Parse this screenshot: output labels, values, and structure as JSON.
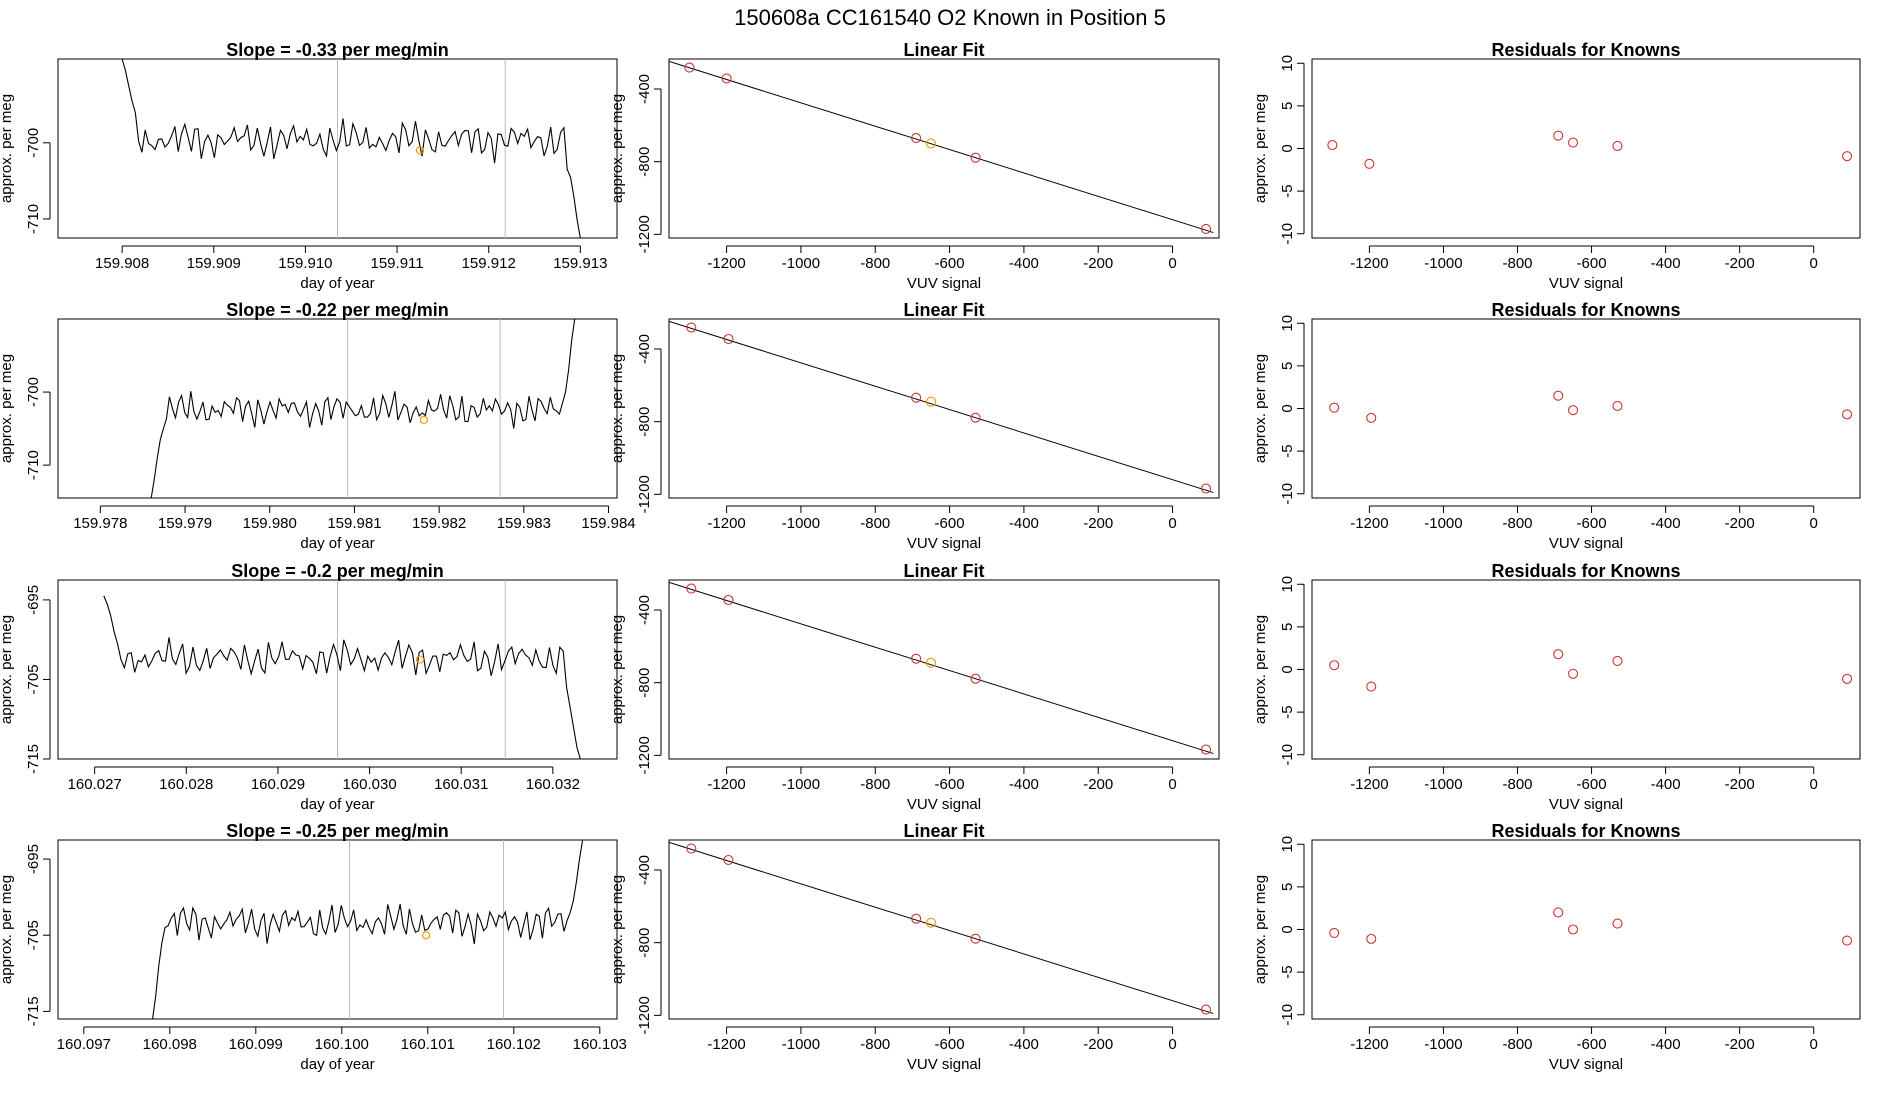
{
  "page_title": "150608a      CC161540    O2 Known in Position  5",
  "colors": {
    "series": "#000000",
    "marker": "#cc3333",
    "marker_highlight": "#e69f00",
    "vline": "#bbbbbb",
    "fit": "#000000"
  },
  "chart_data": [
    {
      "type": "line",
      "id": "ts1",
      "title": "Slope =  -0.33  per meg/min",
      "xlabel": "day of year",
      "ylabel": "approx. per meg",
      "xlim": [
        159.9073,
        159.9134
      ],
      "ylim": [
        -712.5,
        -689
      ],
      "xticks": [
        159.908,
        159.909,
        159.91,
        159.911,
        159.912,
        159.913
      ],
      "xtick_labels": [
        "159.908",
        "159.909",
        "159.910",
        "159.911",
        "159.912",
        "159.913"
      ],
      "yticks": [
        -700,
        -710
      ],
      "ytick_labels": [
        "-700",
        "-710"
      ],
      "vlines": [
        159.91035,
        159.91218
      ],
      "highlight_point": {
        "x": 159.91125,
        "y": -701
      },
      "series": {
        "x_start": 159.908,
        "x_end": 159.913,
        "n": 140,
        "start_y": [
          -689,
          -690.5,
          -692.5,
          -694.5,
          -696.0
        ],
        "end_y": [
          -703.5,
          -704.5,
          -707,
          -710,
          -712.5
        ],
        "base": -699.6,
        "amp": 2.4
      }
    },
    {
      "type": "line",
      "id": "ts2",
      "title": "Slope =  -0.22  per meg/min",
      "xlabel": "day of year",
      "ylabel": "approx. per meg",
      "xlim": [
        159.9775,
        159.9841
      ],
      "ylim": [
        -714.5,
        -690
      ],
      "xticks": [
        159.978,
        159.979,
        159.98,
        159.981,
        159.982,
        159.983,
        159.984
      ],
      "xtick_labels": [
        "159.978",
        "159.979",
        "159.980",
        "159.981",
        "159.982",
        "159.983",
        "159.984"
      ],
      "yticks": [
        -700,
        -710
      ],
      "ytick_labels": [
        "-700",
        "-710"
      ],
      "vlines": [
        159.98092,
        159.98272
      ],
      "highlight_point": {
        "x": 159.98182,
        "y": -703.8
      },
      "series": {
        "x_start": 159.9786,
        "x_end": 159.9836,
        "n": 140,
        "start_y": [
          -714.5,
          -712,
          -709,
          -706.5,
          -705
        ],
        "end_y": [
          -701.5,
          -700,
          -697,
          -693,
          -690
        ],
        "base": -702.4,
        "amp": 2.2
      }
    },
    {
      "type": "line",
      "id": "ts3",
      "title": "Slope =  -0.2  per meg/min",
      "xlabel": "day of year",
      "ylabel": "approx. per meg",
      "xlim": [
        160.0266,
        160.0327
      ],
      "ylim": [
        -715,
        -692.5
      ],
      "xticks": [
        160.027,
        160.028,
        160.029,
        160.03,
        160.031,
        160.032
      ],
      "xtick_labels": [
        "160.027",
        "160.028",
        "160.029",
        "160.030",
        "160.031",
        "160.032"
      ],
      "yticks": [
        -695,
        -705,
        -715
      ],
      "ytick_labels": [
        "-695",
        "-705",
        "-715"
      ],
      "vlines": [
        160.02965,
        160.03148
      ],
      "highlight_point": {
        "x": 160.03055,
        "y": -702.5
      },
      "series": {
        "x_start": 160.0271,
        "x_end": 160.0323,
        "n": 140,
        "start_y": [
          -694.5,
          -695.5,
          -697,
          -699,
          -700.5
        ],
        "end_y": [
          -706,
          -708.5,
          -711,
          -713.5,
          -715
        ],
        "base": -702.3,
        "amp": 2.2
      }
    },
    {
      "type": "line",
      "id": "ts4",
      "title": "Slope =  -0.25  per meg/min",
      "xlabel": "day of year",
      "ylabel": "approx. per meg",
      "xlim": [
        160.0967,
        160.1032
      ],
      "ylim": [
        -716,
        -692.5
      ],
      "xticks": [
        160.097,
        160.098,
        160.099,
        160.1,
        160.101,
        160.102,
        160.103
      ],
      "xtick_labels": [
        "160.097",
        "160.098",
        "160.099",
        "160.100",
        "160.101",
        "160.102",
        "160.103"
      ],
      "yticks": [
        -695,
        -705,
        -715
      ],
      "ytick_labels": [
        "-695",
        "-705",
        "-715"
      ],
      "vlines": [
        160.10009,
        160.10188
      ],
      "highlight_point": {
        "x": 160.10098,
        "y": -705
      },
      "series": {
        "x_start": 160.0978,
        "x_end": 160.1028,
        "n": 140,
        "start_y": [
          -716,
          -713,
          -709,
          -706,
          -704
        ],
        "end_y": [
          -702,
          -700.5,
          -698,
          -695,
          -692.5
        ],
        "base": -703.3,
        "amp": 2.3
      }
    },
    {
      "type": "scatter",
      "id": "fit1",
      "title": "Linear Fit",
      "xlabel": "VUV signal",
      "ylabel": "approx. per meg",
      "xlim": [
        -1355,
        125
      ],
      "ylim": [
        -1220,
        -235
      ],
      "xticks": [
        -1200,
        -1000,
        -800,
        -600,
        -400,
        -200,
        0
      ],
      "xtick_labels": [
        "-1200",
        "-1000",
        "-800",
        "-600",
        "-400",
        "-200",
        "0"
      ],
      "yticks": [
        -400,
        -800,
        -1200
      ],
      "ytick_labels": [
        "-400",
        "-800",
        "-1200"
      ],
      "fit_line": {
        "x": [
          -1355,
          110
        ],
        "y": [
          -248,
          -1190
        ]
      },
      "points": {
        "x": [
          -1300,
          -1200,
          -690,
          -650,
          -530,
          90
        ],
        "y": [
          -282,
          -342,
          -670,
          -700,
          -778,
          -1170
        ]
      },
      "highlight_index": 3
    },
    {
      "type": "scatter",
      "id": "fit2",
      "title": "Linear Fit",
      "xlabel": "VUV signal",
      "ylabel": "approx. per meg",
      "xlim": [
        -1355,
        125
      ],
      "ylim": [
        -1220,
        -235
      ],
      "xticks": [
        -1200,
        -1000,
        -800,
        -600,
        -400,
        -200,
        0
      ],
      "xtick_labels": [
        "-1200",
        "-1000",
        "-800",
        "-600",
        "-400",
        "-200",
        "0"
      ],
      "yticks": [
        -400,
        -800,
        -1200
      ],
      "ytick_labels": [
        "-400",
        "-800",
        "-1200"
      ],
      "fit_line": {
        "x": [
          -1355,
          110
        ],
        "y": [
          -248,
          -1190
        ]
      },
      "points": {
        "x": [
          -1295,
          -1195,
          -690,
          -650,
          -530,
          90
        ],
        "y": [
          -282,
          -345,
          -668,
          -690,
          -778,
          -1168
        ]
      },
      "highlight_index": 3
    },
    {
      "type": "scatter",
      "id": "fit3",
      "title": "Linear Fit",
      "xlabel": "VUV signal",
      "ylabel": "approx. per meg",
      "xlim": [
        -1355,
        125
      ],
      "ylim": [
        -1220,
        -235
      ],
      "xticks": [
        -1200,
        -1000,
        -800,
        -600,
        -400,
        -200,
        0
      ],
      "xtick_labels": [
        "-1200",
        "-1000",
        "-800",
        "-600",
        "-400",
        "-200",
        "0"
      ],
      "yticks": [
        -400,
        -800,
        -1200
      ],
      "ytick_labels": [
        "-400",
        "-800",
        "-1200"
      ],
      "fit_line": {
        "x": [
          -1355,
          110
        ],
        "y": [
          -248,
          -1190
        ]
      },
      "points": {
        "x": [
          -1295,
          -1195,
          -690,
          -650,
          -530,
          90
        ],
        "y": [
          -282,
          -345,
          -668,
          -690,
          -778,
          -1168
        ]
      },
      "highlight_index": 3
    },
    {
      "type": "scatter",
      "id": "fit4",
      "title": "Linear Fit",
      "xlabel": "VUV signal",
      "ylabel": "approx. per meg",
      "xlim": [
        -1355,
        125
      ],
      "ylim": [
        -1220,
        -235
      ],
      "xticks": [
        -1200,
        -1000,
        -800,
        -600,
        -400,
        -200,
        0
      ],
      "xtick_labels": [
        "-1200",
        "-1000",
        "-800",
        "-600",
        "-400",
        "-200",
        "0"
      ],
      "yticks": [
        -400,
        -800,
        -1200
      ],
      "ytick_labels": [
        "-400",
        "-800",
        "-1200"
      ],
      "fit_line": {
        "x": [
          -1355,
          110
        ],
        "y": [
          -248,
          -1190
        ]
      },
      "points": {
        "x": [
          -1295,
          -1195,
          -690,
          -650,
          -530,
          90
        ],
        "y": [
          -282,
          -345,
          -668,
          -690,
          -778,
          -1168
        ]
      },
      "highlight_index": 3
    },
    {
      "type": "scatter",
      "id": "res1",
      "title": "Residuals for Knowns",
      "xlabel": "VUV signal",
      "ylabel": "approx. per meg",
      "xlim": [
        -1355,
        125
      ],
      "ylim": [
        -10.5,
        10.5
      ],
      "xticks": [
        -1200,
        -1000,
        -800,
        -600,
        -400,
        -200,
        0
      ],
      "xtick_labels": [
        "-1200",
        "-1000",
        "-800",
        "-600",
        "-400",
        "-200",
        "0"
      ],
      "yticks": [
        10,
        5,
        0,
        -5,
        -10
      ],
      "ytick_labels": [
        "10",
        "5",
        "0",
        "-5",
        "-10"
      ],
      "points": {
        "x": [
          -1300,
          -1200,
          -690,
          -650,
          -530,
          90
        ],
        "y": [
          0.4,
          -1.8,
          1.5,
          0.7,
          0.3,
          -0.9
        ]
      }
    },
    {
      "type": "scatter",
      "id": "res2",
      "title": "Residuals for Knowns",
      "xlabel": "VUV signal",
      "ylabel": "approx. per meg",
      "xlim": [
        -1355,
        125
      ],
      "ylim": [
        -10.5,
        10.5
      ],
      "xticks": [
        -1200,
        -1000,
        -800,
        -600,
        -400,
        -200,
        0
      ],
      "xtick_labels": [
        "-1200",
        "-1000",
        "-800",
        "-600",
        "-400",
        "-200",
        "0"
      ],
      "yticks": [
        10,
        5,
        0,
        -5,
        -10
      ],
      "ytick_labels": [
        "10",
        "5",
        "0",
        "-5",
        "-10"
      ],
      "points": {
        "x": [
          -1295,
          -1195,
          -690,
          -650,
          -530,
          90
        ],
        "y": [
          0.1,
          -1.1,
          1.5,
          -0.2,
          0.3,
          -0.7
        ]
      }
    },
    {
      "type": "scatter",
      "id": "res3",
      "title": "Residuals for Knowns",
      "xlabel": "VUV signal",
      "ylabel": "approx. per meg",
      "xlim": [
        -1355,
        125
      ],
      "ylim": [
        -10.5,
        10.5
      ],
      "xticks": [
        -1200,
        -1000,
        -800,
        -600,
        -400,
        -200,
        0
      ],
      "xtick_labels": [
        "-1200",
        "-1000",
        "-800",
        "-600",
        "-400",
        "-200",
        "0"
      ],
      "yticks": [
        10,
        5,
        0,
        -5,
        -10
      ],
      "ytick_labels": [
        "10",
        "5",
        "0",
        "-5",
        "-10"
      ],
      "points": {
        "x": [
          -1295,
          -1195,
          -690,
          -650,
          -530,
          90
        ],
        "y": [
          0.5,
          -2.0,
          1.8,
          -0.5,
          1.0,
          -1.1
        ]
      }
    },
    {
      "type": "scatter",
      "id": "res4",
      "title": "Residuals for Knowns",
      "xlabel": "VUV signal",
      "ylabel": "approx. per meg",
      "xlim": [
        -1355,
        125
      ],
      "ylim": [
        -10.5,
        10.5
      ],
      "xticks": [
        -1200,
        -1000,
        -800,
        -600,
        -400,
        -200,
        0
      ],
      "xtick_labels": [
        "-1200",
        "-1000",
        "-800",
        "-600",
        "-400",
        "-200",
        "0"
      ],
      "yticks": [
        10,
        5,
        0,
        -5,
        -10
      ],
      "ytick_labels": [
        "10",
        "5",
        "0",
        "-5",
        "-10"
      ],
      "points": {
        "x": [
          -1295,
          -1195,
          -690,
          -650,
          -530,
          90
        ],
        "y": [
          -0.4,
          -1.1,
          2.0,
          0.0,
          0.7,
          -1.3
        ]
      }
    }
  ]
}
